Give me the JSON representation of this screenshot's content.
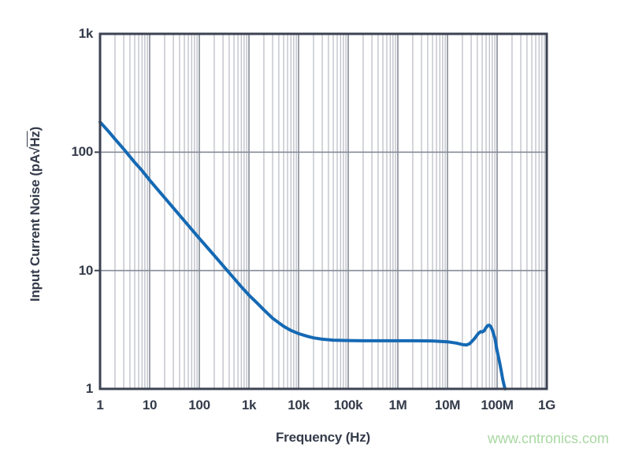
{
  "page": {
    "background": "#ffffff",
    "watermark": {
      "text": "www.cntronics.com",
      "color": "#a9d8a3"
    }
  },
  "chart_data": {
    "type": "line",
    "title": "",
    "xlabel": "Frequency (Hz)",
    "ylabel": "Input Current Noise (pA√Hz)",
    "ylabel_parts": {
      "prefix": "Input Current Noise (pA",
      "sqrt_symbol": "√",
      "under_root": "Hz",
      "suffix": ")"
    },
    "x_scale": "log",
    "y_scale": "log",
    "xlim": [
      1,
      1000000000
    ],
    "ylim": [
      1,
      1000
    ],
    "x_ticks": [
      {
        "f": 1,
        "label": "1"
      },
      {
        "f": 10,
        "label": "10"
      },
      {
        "f": 100,
        "label": "100"
      },
      {
        "f": 1000,
        "label": "1k"
      },
      {
        "f": 10000,
        "label": "10k"
      },
      {
        "f": 100000,
        "label": "100k"
      },
      {
        "f": 1000000,
        "label": "1M"
      },
      {
        "f": 10000000,
        "label": "10M"
      },
      {
        "f": 100000000,
        "label": "100M"
      },
      {
        "f": 1000000000,
        "label": "1G"
      }
    ],
    "y_ticks": [
      {
        "v": 1000,
        "label": "1k"
      },
      {
        "v": 100,
        "label": "100"
      },
      {
        "v": 10,
        "label": "10"
      },
      {
        "v": 1,
        "label": "1"
      }
    ],
    "grid": {
      "vertical_minor": true,
      "vertical_major": true,
      "horizontal_minor": false,
      "horizontal_major": true,
      "minor_color": "#a8acb6",
      "major_color": "#868c98",
      "border_color": "#3b4252"
    },
    "legend": null,
    "series": [
      {
        "name": "input-current-noise",
        "color": "#1569b4",
        "points": [
          [
            1,
            180
          ],
          [
            1.5,
            149
          ],
          [
            2,
            129
          ],
          [
            3,
            106
          ],
          [
            5,
            82
          ],
          [
            7,
            70
          ],
          [
            10,
            58
          ],
          [
            15,
            47.5
          ],
          [
            20,
            41.2
          ],
          [
            30,
            33.8
          ],
          [
            50,
            26.3
          ],
          [
            70,
            22.3
          ],
          [
            100,
            18.7
          ],
          [
            150,
            15.4
          ],
          [
            200,
            13.4
          ],
          [
            300,
            11.0
          ],
          [
            500,
            8.6
          ],
          [
            700,
            7.3
          ],
          [
            1000,
            6.2
          ],
          [
            1500,
            5.25
          ],
          [
            2000,
            4.65
          ],
          [
            3000,
            3.95
          ],
          [
            5000,
            3.38
          ],
          [
            7000,
            3.12
          ],
          [
            10000,
            2.93
          ],
          [
            15000,
            2.78
          ],
          [
            20000,
            2.7
          ],
          [
            30000,
            2.63
          ],
          [
            50000,
            2.58
          ],
          [
            100000,
            2.56
          ],
          [
            200000,
            2.55
          ],
          [
            500000,
            2.55
          ],
          [
            1000000,
            2.55
          ],
          [
            2000000,
            2.55
          ],
          [
            5000000,
            2.54
          ],
          [
            10000000,
            2.5
          ],
          [
            15000000,
            2.44
          ],
          [
            20000000,
            2.37
          ],
          [
            24000000,
            2.35
          ],
          [
            28000000,
            2.41
          ],
          [
            35000000,
            2.66
          ],
          [
            42000000,
            2.95
          ],
          [
            47000000,
            3.05
          ],
          [
            50000000,
            3.02
          ],
          [
            55000000,
            3.1
          ],
          [
            60000000,
            3.3
          ],
          [
            65000000,
            3.43
          ],
          [
            70000000,
            3.45
          ],
          [
            75000000,
            3.35
          ],
          [
            80000000,
            3.15
          ],
          [
            90000000,
            2.7
          ],
          [
            100000000,
            2.1
          ],
          [
            110000000,
            1.75
          ],
          [
            120000000,
            1.45
          ],
          [
            130000000,
            1.2
          ],
          [
            140000000,
            1.05
          ],
          [
            145000000,
            1.0
          ]
        ]
      }
    ]
  }
}
